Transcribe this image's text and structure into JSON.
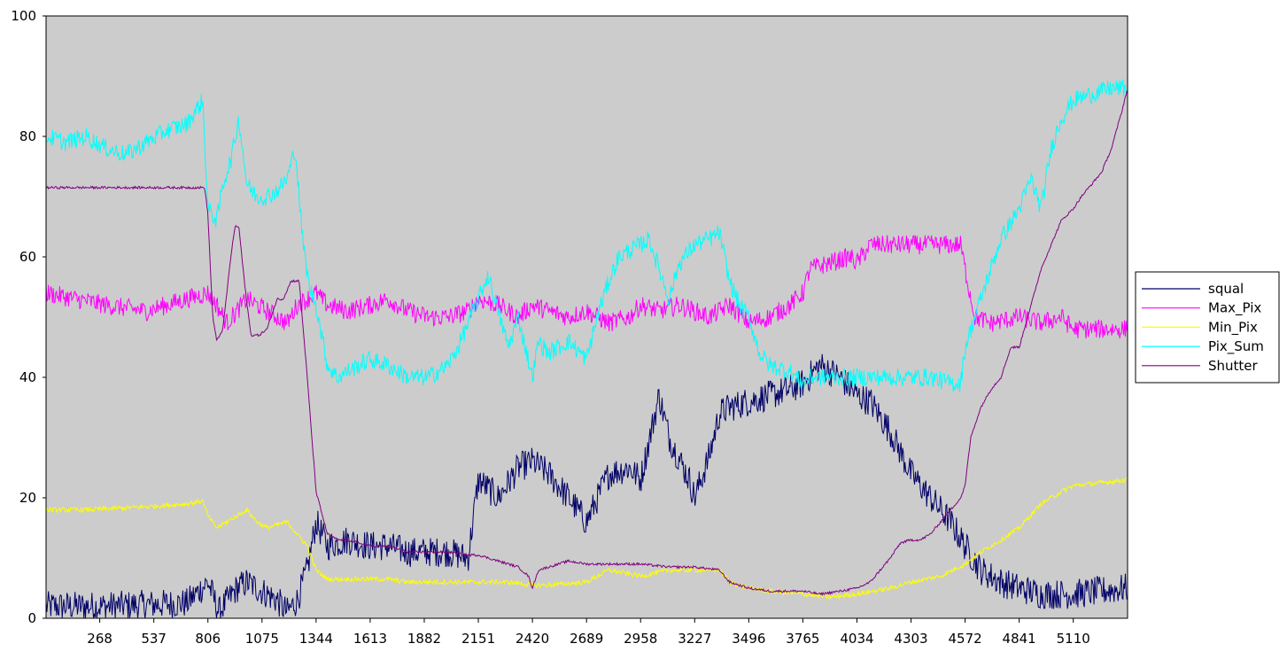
{
  "chart_data": {
    "type": "line",
    "title": "",
    "xlabel": "",
    "ylabel": "",
    "xlim": [
      1,
      5380
    ],
    "ylim": [
      0,
      100
    ],
    "y_ticks": [
      0,
      20,
      40,
      60,
      80,
      100
    ],
    "x_ticks": [
      268,
      537,
      806,
      1075,
      1344,
      1613,
      1882,
      2151,
      2420,
      2689,
      2958,
      3227,
      3496,
      3765,
      4034,
      4303,
      4572,
      4841,
      5110
    ],
    "grid": false,
    "legend_position": "right",
    "plot_background": "#cccccc",
    "series": [
      {
        "name": "squal",
        "color": "#000066",
        "noise": 2.5,
        "x": [
          0,
          300,
          700,
          806,
          860,
          950,
          1000,
          1100,
          1150,
          1200,
          1250,
          1300,
          1344,
          1400,
          1500,
          1613,
          1700,
          1800,
          1900,
          2000,
          2100,
          2151,
          2250,
          2350,
          2420,
          2500,
          2600,
          2689,
          2800,
          2900,
          2958,
          3050,
          3100,
          3200,
          3227,
          3300,
          3350,
          3400,
          3496,
          3600,
          3700,
          3765,
          3850,
          3950,
          4034,
          4100,
          4200,
          4303,
          4400,
          4500,
          4572,
          4650,
          4750,
          4841,
          4950,
          5110,
          5380
        ],
        "y": [
          2,
          2,
          2.5,
          6,
          1,
          5,
          6,
          4,
          3,
          1,
          3,
          8,
          16,
          12,
          13,
          12,
          12,
          11,
          11,
          11,
          10,
          23,
          20,
          25,
          26,
          24,
          20,
          16,
          24,
          25,
          23,
          37,
          30,
          23,
          20,
          27,
          34,
          35,
          36,
          37,
          38,
          39,
          42,
          40,
          37,
          36,
          31,
          24,
          20,
          16,
          12,
          8,
          6,
          5,
          4,
          4,
          5
        ]
      },
      {
        "name": "Max_Pix",
        "color": "#ff00ff",
        "noise": 1.6,
        "x": [
          0,
          300,
          500,
          700,
          806,
          850,
          900,
          1000,
          1100,
          1200,
          1250,
          1300,
          1344,
          1400,
          1500,
          1613,
          1700,
          1800,
          1900,
          2000,
          2100,
          2151,
          2250,
          2350,
          2420,
          2500,
          2600,
          2689,
          2800,
          2900,
          2958,
          3050,
          3150,
          3227,
          3300,
          3400,
          3496,
          3600,
          3700,
          3765,
          3800,
          3900,
          4000,
          4034,
          4100,
          4200,
          4303,
          4400,
          4500,
          4550,
          4572,
          4620,
          4700,
          4841,
          4950,
          5050,
          5110,
          5200,
          5380
        ],
        "y": [
          54,
          52,
          51,
          53,
          54,
          52,
          49,
          53,
          51,
          49,
          52,
          53,
          54,
          52,
          51,
          52,
          53,
          51,
          50,
          50,
          51,
          53,
          52,
          50,
          52,
          51,
          50,
          51,
          49,
          50,
          52,
          51,
          52,
          51,
          50,
          52,
          49,
          50,
          52,
          54,
          58,
          59,
          60,
          59,
          62,
          62,
          62,
          62,
          62,
          62,
          58,
          50,
          49,
          50,
          49,
          50,
          48,
          48,
          48
        ]
      },
      {
        "name": "Min_Pix",
        "color": "#ffff00",
        "noise": 0.4,
        "x": [
          0,
          200,
          500,
          700,
          780,
          806,
          850,
          900,
          950,
          1000,
          1050,
          1100,
          1200,
          1250,
          1300,
          1344,
          1400,
          1500,
          1613,
          1700,
          1800,
          1900,
          2000,
          2151,
          2300,
          2420,
          2500,
          2689,
          2800,
          2958,
          3100,
          3227,
          3350,
          3400,
          3496,
          3600,
          3765,
          3900,
          4034,
          4200,
          4303,
          4450,
          4572,
          4650,
          4750,
          4841,
          4950,
          5050,
          5110,
          5250,
          5380
        ],
        "y": [
          18,
          18,
          18.5,
          19,
          19.5,
          17,
          15,
          16,
          17,
          18,
          16,
          15,
          16,
          14,
          12,
          8,
          6.5,
          6.5,
          6.5,
          6.5,
          6,
          6,
          6,
          6,
          6,
          5.5,
          5.5,
          6,
          8,
          7,
          8,
          8,
          8,
          6,
          5,
          4.5,
          4,
          3.5,
          4,
          5,
          6,
          7,
          9,
          11,
          13,
          15,
          19,
          21,
          22,
          22.5,
          23
        ]
      },
      {
        "name": "Pix_Sum",
        "color": "#00ffff",
        "noise": 1.5,
        "x": [
          0,
          100,
          200,
          300,
          400,
          500,
          600,
          700,
          780,
          806,
          850,
          880,
          920,
          960,
          1000,
          1050,
          1100,
          1150,
          1200,
          1240,
          1280,
          1310,
          1344,
          1400,
          1450,
          1500,
          1613,
          1700,
          1800,
          1900,
          2000,
          2050,
          2151,
          2200,
          2300,
          2350,
          2420,
          2450,
          2500,
          2600,
          2689,
          2750,
          2800,
          2850,
          2900,
          2958,
          3000,
          3050,
          3100,
          3150,
          3227,
          3300,
          3350,
          3400,
          3450,
          3496,
          3550,
          3600,
          3700,
          3765,
          3800,
          4000,
          4200,
          4400,
          4500,
          4550,
          4572,
          4620,
          4700,
          4750,
          4841,
          4900,
          4950,
          5000,
          5050,
          5110,
          5200,
          5300,
          5380
        ],
        "y": [
          80,
          79,
          80,
          78,
          77,
          79,
          81,
          82,
          86,
          68,
          66,
          72,
          76,
          83,
          72,
          70,
          70,
          71,
          73,
          78,
          62,
          55,
          52,
          42,
          40,
          41,
          43,
          42,
          40,
          40,
          42,
          45,
          53,
          57,
          45,
          50,
          40,
          46,
          44,
          46,
          43,
          51,
          56,
          60,
          61,
          62,
          63,
          58,
          53,
          59,
          62,
          63,
          64,
          56,
          52,
          50,
          44,
          42,
          41,
          39,
          40,
          40,
          40,
          40,
          39,
          39,
          45,
          50,
          58,
          63,
          68,
          73,
          68,
          78,
          83,
          86,
          87,
          88,
          88
        ]
      },
      {
        "name": "Shutter",
        "color": "#800080",
        "noise": 0.2,
        "x": [
          0,
          500,
          790,
          806,
          830,
          850,
          880,
          920,
          940,
          960,
          990,
          1020,
          1060,
          1100,
          1150,
          1180,
          1220,
          1260,
          1300,
          1344,
          1400,
          1450,
          1500,
          1613,
          1700,
          1800,
          1900,
          2000,
          2100,
          2151,
          2250,
          2300,
          2350,
          2400,
          2420,
          2450,
          2500,
          2600,
          2689,
          2800,
          2900,
          2958,
          3100,
          3227,
          3350,
          3400,
          3496,
          3600,
          3700,
          3765,
          3850,
          3950,
          4034,
          4100,
          4150,
          4200,
          4250,
          4303,
          4350,
          4400,
          4450,
          4500,
          4550,
          4572,
          4600,
          4650,
          4700,
          4750,
          4800,
          4841,
          4900,
          4950,
          5000,
          5050,
          5110,
          5150,
          5200,
          5250,
          5300,
          5350,
          5380
        ],
        "y": [
          71.5,
          71.5,
          71.5,
          67,
          50,
          46,
          48,
          60,
          65,
          65,
          55,
          47,
          47,
          48,
          53,
          53,
          56,
          56,
          40,
          21,
          14,
          13,
          13,
          12,
          12,
          11,
          11,
          11,
          10.5,
          10.5,
          9.5,
          9,
          8.5,
          7,
          5,
          8,
          8.5,
          9.5,
          9,
          9,
          9,
          9,
          8.5,
          8.5,
          8,
          6,
          5,
          4.5,
          4.5,
          4.5,
          4,
          4.5,
          5,
          6,
          8,
          10,
          12.5,
          13,
          13,
          14,
          16,
          18,
          20,
          22,
          30,
          35,
          38,
          40,
          45,
          45,
          52,
          58,
          62,
          66,
          68,
          70,
          72,
          74,
          78,
          84,
          88
        ]
      }
    ]
  }
}
